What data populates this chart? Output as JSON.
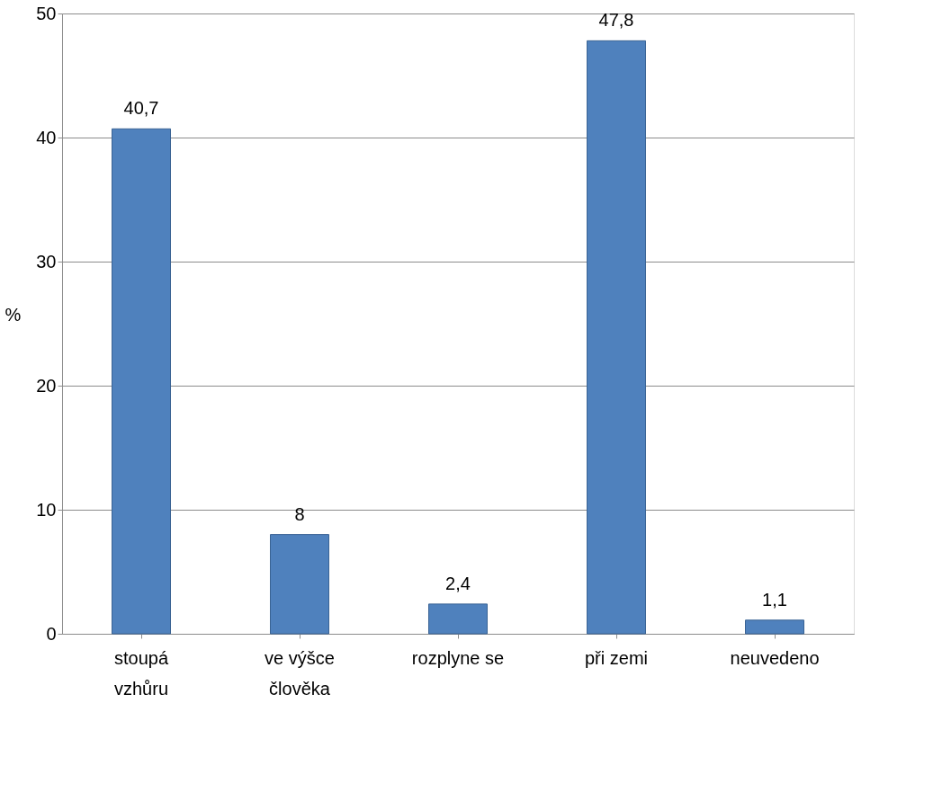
{
  "chart_data": {
    "type": "bar",
    "categories": [
      "stoupá\nvzhůru",
      "ve výšce\nčlověka",
      "rozplyne se",
      "při zemi",
      "neuvedeno"
    ],
    "values": [
      40.7,
      8,
      2.4,
      47.8,
      1.1
    ],
    "value_labels": [
      "40,7",
      "8",
      "2,4",
      "47,8",
      "1,1"
    ],
    "color": "#4f81bd",
    "ylabel": "%",
    "ylim": [
      0,
      50
    ],
    "yticks": [
      0,
      10,
      20,
      30,
      40,
      50
    ],
    "grid": "y"
  }
}
